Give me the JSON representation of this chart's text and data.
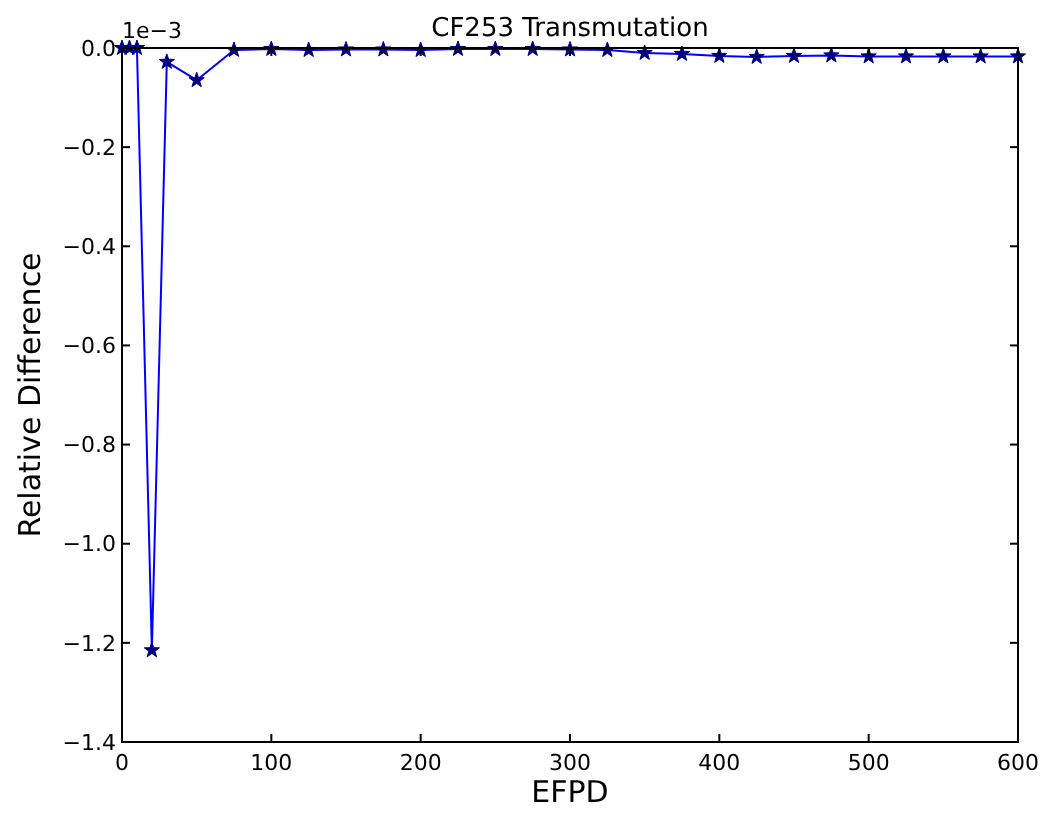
{
  "chart_data": {
    "type": "line",
    "title": "CF253 Transmutation",
    "xlabel": "EFPD",
    "ylabel": "Relative Difference",
    "annotations": [
      "1e−3"
    ],
    "x": [
      0,
      5,
      10,
      20,
      30,
      50,
      75,
      100,
      125,
      150,
      175,
      200,
      225,
      250,
      275,
      300,
      325,
      350,
      375,
      400,
      425,
      450,
      475,
      500,
      525,
      550,
      575,
      600
    ],
    "series": [
      {
        "color": "#0000ff",
        "values": [
          0,
          0,
          0,
          -1.215,
          -0.028,
          -0.065,
          -0.004,
          -0.002,
          -0.004,
          -0.003,
          -0.003,
          -0.004,
          -0.002,
          -0.002,
          -0.002,
          -0.003,
          -0.004,
          -0.01,
          -0.012,
          -0.016,
          -0.018,
          -0.016,
          -0.015,
          -0.017,
          -0.017,
          -0.017,
          -0.017,
          -0.017
        ]
      }
    ],
    "xlim": [
      0,
      600
    ],
    "xticks": [
      0,
      100,
      200,
      300,
      400,
      500,
      600
    ],
    "ylim": [
      -1.4,
      0
    ],
    "yticks": [
      {
        "value": -1.4,
        "label": "−1.4"
      },
      {
        "value": -1.2,
        "label": "−1.2"
      },
      {
        "value": -1.0,
        "label": "−1.0"
      },
      {
        "value": -0.8,
        "label": "−0.8"
      },
      {
        "value": -0.6,
        "label": "−0.6"
      },
      {
        "value": -0.4,
        "label": "−0.4"
      },
      {
        "value": -0.2,
        "label": "−0.2"
      },
      {
        "value": 0,
        "label": "0.0"
      }
    ],
    "marker": "star",
    "line_style": "solid",
    "grid": false
  }
}
